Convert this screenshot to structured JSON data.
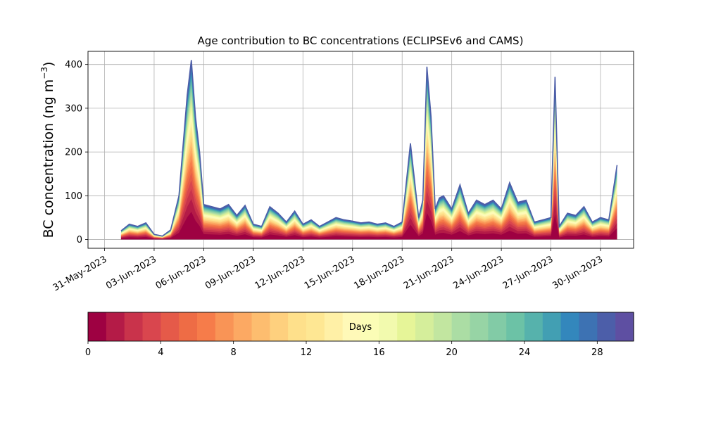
{
  "chart_data": {
    "type": "area",
    "title": "Age contribution to BC concentrations (ECLIPSEv6 and CAMS)",
    "xlabel": "",
    "ylabel": "BC concentration (ng m",
    "ylabel_superscript": "−3",
    "ylabel_close": ")",
    "ylim": [
      -20,
      430
    ],
    "yticks": [
      0,
      100,
      200,
      300,
      400
    ],
    "xlim": [
      "2023-05-30",
      "2023-07-02"
    ],
    "xtick_labels": [
      "31-May-2023",
      "03-Jun-2023",
      "06-Jun-2023",
      "09-Jun-2023",
      "12-Jun-2023",
      "15-Jun-2023",
      "18-Jun-2023",
      "21-Jun-2023",
      "24-Jun-2023",
      "27-Jun-2023",
      "30-Jun-2023"
    ],
    "xtick_dates": [
      "2023-05-31",
      "2023-06-03",
      "2023-06-06",
      "2023-06-09",
      "2023-06-12",
      "2023-06-15",
      "2023-06-18",
      "2023-06-21",
      "2023-06-24",
      "2023-06-27",
      "2023-06-30"
    ],
    "grid": true,
    "stack_description": "total concentration stacked by aerosol age bins 0–30 days",
    "total_series": {
      "name": "",
      "x": [
        "2023-06-01",
        "2023-06-01 12:00",
        "2023-06-02",
        "2023-06-02 12:00",
        "2023-06-03",
        "2023-06-03 12:00",
        "2023-06-04",
        "2023-06-04 12:00",
        "2023-06-05",
        "2023-06-05 06:00",
        "2023-06-05 12:00",
        "2023-06-05 18:00",
        "2023-06-06",
        "2023-06-06 12:00",
        "2023-06-07",
        "2023-06-07 12:00",
        "2023-06-08",
        "2023-06-08 12:00",
        "2023-06-09",
        "2023-06-09 12:00",
        "2023-06-10",
        "2023-06-10 12:00",
        "2023-06-11",
        "2023-06-11 12:00",
        "2023-06-12",
        "2023-06-12 12:00",
        "2023-06-13",
        "2023-06-13 12:00",
        "2023-06-14",
        "2023-06-14 12:00",
        "2023-06-15",
        "2023-06-15 12:00",
        "2023-06-16",
        "2023-06-16 12:00",
        "2023-06-17",
        "2023-06-17 12:00",
        "2023-06-18",
        "2023-06-18 12:00",
        "2023-06-19",
        "2023-06-19 06:00",
        "2023-06-19 12:00",
        "2023-06-19 18:00",
        "2023-06-20",
        "2023-06-20 06:00",
        "2023-06-20 12:00",
        "2023-06-21",
        "2023-06-21 12:00",
        "2023-06-22",
        "2023-06-22 12:00",
        "2023-06-23",
        "2023-06-23 12:00",
        "2023-06-24",
        "2023-06-24 12:00",
        "2023-06-25",
        "2023-06-25 12:00",
        "2023-06-26",
        "2023-06-26 12:00",
        "2023-06-27",
        "2023-06-27 06:00",
        "2023-06-27 12:00",
        "2023-06-28",
        "2023-06-28 12:00",
        "2023-06-29",
        "2023-06-29 12:00",
        "2023-06-30",
        "2023-06-30 12:00",
        "2023-07-01"
      ],
      "values": [
        20,
        35,
        30,
        38,
        12,
        8,
        22,
        100,
        330,
        410,
        280,
        200,
        80,
        75,
        70,
        80,
        55,
        78,
        35,
        30,
        75,
        60,
        40,
        65,
        35,
        45,
        30,
        40,
        50,
        45,
        42,
        38,
        40,
        35,
        38,
        30,
        40,
        220,
        50,
        90,
        395,
        280,
        70,
        95,
        100,
        70,
        125,
        60,
        90,
        80,
        90,
        70,
        130,
        85,
        90,
        40,
        45,
        50,
        372,
        30,
        60,
        55,
        75,
        40,
        50,
        45,
        170
      ]
    },
    "age_bins": {
      "label": "Days",
      "min": 0,
      "max": 30,
      "step": 1,
      "ticks": [
        0,
        4,
        8,
        12,
        16,
        20,
        24,
        28
      ],
      "colors": [
        "#9e0142",
        "#b41b47",
        "#c9334b",
        "#d9464e",
        "#e55a49",
        "#ee6c45",
        "#f67c4a",
        "#f99456",
        "#fca963",
        "#fdbd6f",
        "#fed07e",
        "#fee08b",
        "#fee793",
        "#fff0a6",
        "#fff9b8",
        "#fbfdb6",
        "#f2faae",
        "#e6f598",
        "#d5ee9b",
        "#c2e6a0",
        "#abdda4",
        "#97d4a5",
        "#82cba6",
        "#6cc2a6",
        "#56b2ac",
        "#429fb3",
        "#3387bc",
        "#3d72b3",
        "#4c5ea9",
        "#5e4fa2"
      ]
    }
  }
}
